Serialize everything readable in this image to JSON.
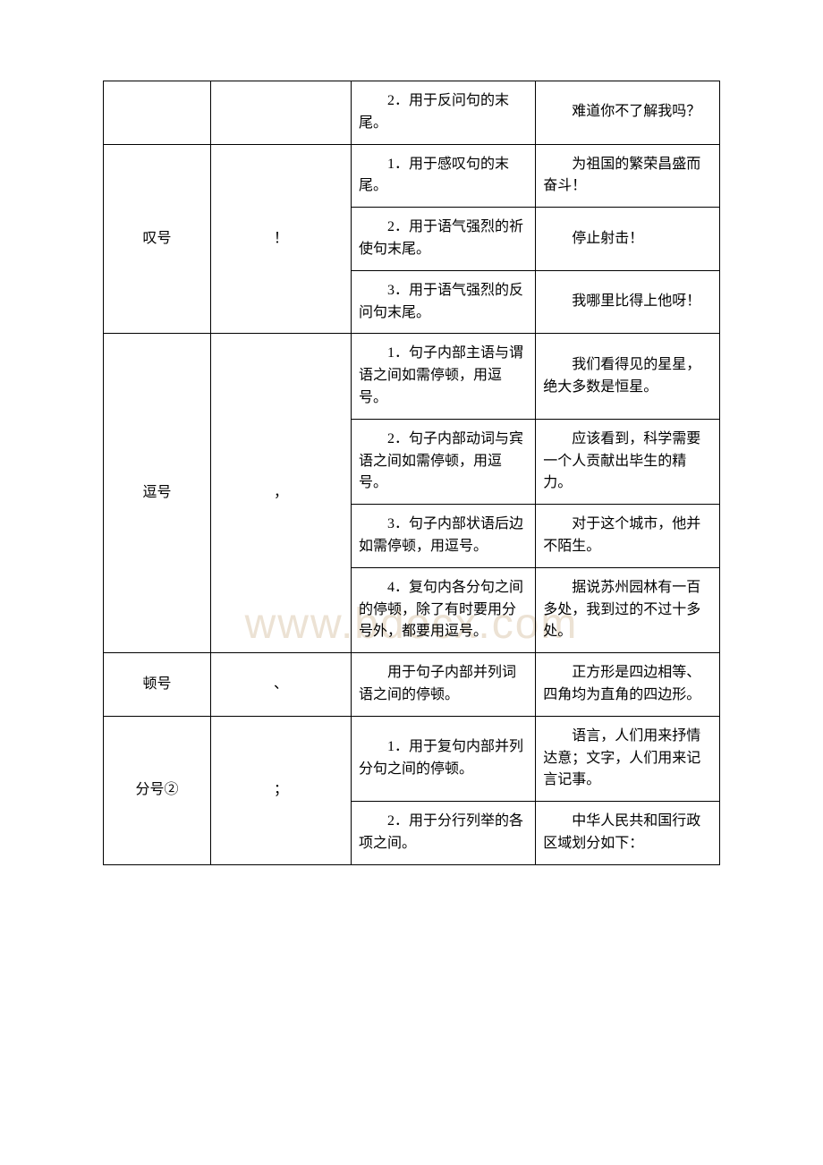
{
  "watermark": "www.bdocx.com",
  "table": {
    "colors": {
      "border": "#000000",
      "text": "#000000",
      "background": "#ffffff",
      "watermark": "#ece2d4"
    },
    "font_size_pt": 12,
    "rows": [
      {
        "name": null,
        "symbol": null,
        "usage": "2．用于反问句的末尾。",
        "example": "难道你不了解我吗？",
        "first_in_group": false,
        "rowspan": 1
      },
      {
        "name": "叹号",
        "symbol": "！",
        "usage": "1．用于感叹句的末尾。",
        "example": "为祖国的繁荣昌盛而奋斗！",
        "first_in_group": true,
        "rowspan": 3
      },
      {
        "usage": "2．用于语气强烈的祈使句末尾。",
        "example": "停止射击！"
      },
      {
        "usage": "3．用于语气强烈的反问句末尾。",
        "example": "我哪里比得上他呀！"
      },
      {
        "name": "逗号",
        "symbol": "，",
        "usage": "1．句子内部主语与谓语之间如需停顿，用逗号。",
        "example": "我们看得见的星星，绝大多数是恒星。",
        "first_in_group": true,
        "rowspan": 4
      },
      {
        "usage": "2．句子内部动词与宾语之间如需停顿，用逗号。",
        "example": "应该看到，科学需要一个人贡献出毕生的精力。"
      },
      {
        "usage": "3．句子内部状语后边如需停顿，用逗号。",
        "example": "对于这个城市，他并不陌生。"
      },
      {
        "usage": "4．复句内各分句之间的停顿，除了有时要用分号外，都要用逗号。",
        "example": "据说苏州园林有一百多处，我到过的不过十多处。"
      },
      {
        "name": "顿号",
        "symbol": "、",
        "usage": "用于句子内部并列词语之间的停顿。",
        "example": "正方形是四边相等、四角均为直角的四边形。",
        "first_in_group": true,
        "rowspan": 1
      },
      {
        "name": "分号②",
        "symbol": "；",
        "usage": "1．用于复句内部并列分句之间的停顿。",
        "example": "语言，人们用来抒情达意；文字，人们用来记言记事。",
        "first_in_group": true,
        "rowspan": 2
      },
      {
        "usage": "2．用于分行列举的各项之间。",
        "example": "中华人民共和国行政区域划分如下："
      }
    ]
  }
}
